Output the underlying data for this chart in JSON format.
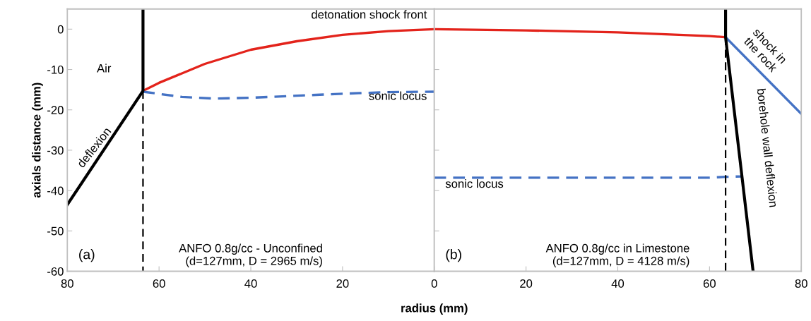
{
  "chart_data": [
    {
      "type": "line",
      "xlabel": "radius (mm)",
      "ylabel": "axials distance (mm)",
      "xlim": [
        80,
        0
      ],
      "ylim": [
        -60,
        5
      ],
      "xticks": [
        80,
        60,
        40,
        20,
        {
          "value": 0,
          "label": null
        }
      ],
      "yticks": [
        0,
        -10,
        -20,
        -30,
        -40,
        -50,
        -60
      ],
      "grid": false,
      "legend": false,
      "marker": "none",
      "series": [
        {
          "color": "#e3231b",
          "x": [
            63.5,
            60,
            50,
            40,
            30,
            20,
            10,
            0
          ],
          "values": [
            -15.3,
            -13.3,
            -8.6,
            -5.1,
            -3,
            -1.4,
            -0.5,
            0
          ]
        },
        {
          "color": "#4472c4",
          "line_style": "dashed",
          "x": [
            63.5,
            55,
            48,
            40,
            30,
            20,
            10,
            0
          ],
          "values": [
            -15.5,
            -16.8,
            -17.2,
            -17,
            -16.5,
            -16,
            -15.6,
            -15.5
          ]
        },
        {
          "color": "#000000",
          "x": [
            80,
            63.5,
            63.5
          ],
          "values": [
            -43.5,
            -15.3,
            5
          ]
        },
        {
          "color": "#000000",
          "line_style": "dashed",
          "x": [
            63.5,
            63.5
          ],
          "values": [
            -15.3,
            -60
          ]
        }
      ],
      "annotations": [
        "detonation shock front",
        "Air",
        "deflexion",
        "sonic locus",
        "(a)",
        "ANFO 0.8g/cc - Unconfined\n(d=127mm, D = 2965 m/s)"
      ]
    },
    {
      "type": "line",
      "xlim": [
        0,
        80
      ],
      "ylim": [
        -60,
        5
      ],
      "xticks": [
        0,
        20,
        40,
        60,
        80
      ],
      "yticks": [
        0,
        -10,
        -20,
        -30,
        -40,
        -50,
        -60
      ],
      "tick_labels": "x",
      "grid": false,
      "legend": false,
      "marker": "none",
      "series": [
        {
          "color": "#e3231b",
          "x": [
            0,
            20,
            40,
            60,
            63.5
          ],
          "values": [
            0,
            -0.3,
            -0.8,
            -1.7,
            -2
          ]
        },
        {
          "color": "#4472c4",
          "line_style": "dashed",
          "x": [
            0,
            30,
            60,
            63.5,
            67
          ],
          "values": [
            -36.8,
            -36.8,
            -36.8,
            -36.6,
            -36.5
          ]
        },
        {
          "color": "#4472c4",
          "x": [
            63.5,
            80
          ],
          "values": [
            -2,
            -21
          ]
        },
        {
          "color": "#000000",
          "x": [
            63.5,
            63.5,
            69.5
          ],
          "values": [
            5,
            -2,
            -60
          ]
        },
        {
          "color": "#000000",
          "line_style": "dashed",
          "x": [
            63.5,
            63.5
          ],
          "values": [
            -2,
            -60
          ]
        }
      ],
      "annotations": [
        "shock in\nthe rock",
        "borehole wall deflexion",
        "sonic locus",
        "(b)",
        "ANFO 0.8g/cc in Limestone\n(d=127mm, D = 4128 m/s)"
      ]
    }
  ]
}
